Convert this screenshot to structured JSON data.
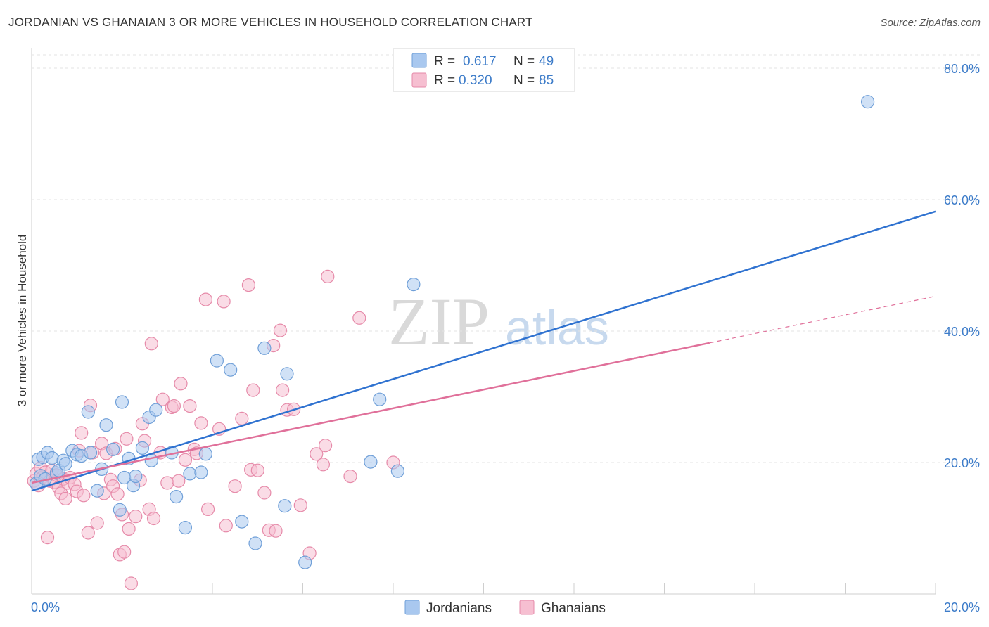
{
  "title": "JORDANIAN VS GHANAIAN 3 OR MORE VEHICLES IN HOUSEHOLD CORRELATION CHART",
  "source": "Source: ZipAtlas.com",
  "watermark": {
    "zip": "ZIP",
    "atlas": "atlas"
  },
  "colors": {
    "jordanian_fill": "#a9c8ef",
    "jordanian_stroke": "#6f9fd8",
    "jordanian_line": "#2f72d0",
    "ghanaian_fill": "#f6bfd1",
    "ghanaian_stroke": "#e68aa9",
    "ghanaian_line": "#e0709a",
    "tick_text": "#3d7cc9"
  },
  "legend": {
    "rows": [
      {
        "r_label": "R = ",
        "r_value": "0.617",
        "n_label": "N = ",
        "n_value": "49"
      },
      {
        "r_label": "R = ",
        "r_value": "0.320",
        "n_label": "N = ",
        "n_value": "85"
      }
    ],
    "bottom": [
      "Jordanians",
      "Ghanaians"
    ]
  },
  "chart_data": {
    "type": "scatter",
    "title": "JORDANIAN VS GHANAIAN 3 OR MORE VEHICLES IN HOUSEHOLD CORRELATION CHART",
    "xlabel": "",
    "ylabel": "3 or more Vehicles in Household",
    "xlim": [
      0,
      20
    ],
    "ylim": [
      0,
      80
    ],
    "x_tick_labels": [
      "0.0%",
      "20.0%"
    ],
    "y_ticks": [
      20,
      40,
      60,
      80
    ],
    "y_tick_labels": [
      "20.0%",
      "40.0%",
      "60.0%",
      "80.0%"
    ],
    "grid": true,
    "series": [
      {
        "name": "Jordanians",
        "r": 0.617,
        "n": 49,
        "trend": {
          "x": [
            0,
            20
          ],
          "y": [
            15.7,
            58.2
          ],
          "dashed_to": null
        },
        "points": [
          [
            0.1,
            16.8
          ],
          [
            0.15,
            20.5
          ],
          [
            0.2,
            18
          ],
          [
            0.25,
            20.8
          ],
          [
            0.3,
            17.5
          ],
          [
            0.35,
            21.5
          ],
          [
            0.45,
            20.7
          ],
          [
            0.55,
            18.4
          ],
          [
            0.6,
            18.8
          ],
          [
            0.7,
            20.3
          ],
          [
            0.75,
            19.8
          ],
          [
            0.9,
            21.8
          ],
          [
            1.0,
            21.2
          ],
          [
            1.1,
            21.0
          ],
          [
            1.25,
            27.7
          ],
          [
            1.3,
            21.5
          ],
          [
            1.45,
            15.7
          ],
          [
            1.55,
            19
          ],
          [
            1.65,
            25.7
          ],
          [
            1.8,
            22
          ],
          [
            1.95,
            12.8
          ],
          [
            2.0,
            29.2
          ],
          [
            2.05,
            17.7
          ],
          [
            2.15,
            20.6
          ],
          [
            2.25,
            16.5
          ],
          [
            2.3,
            17.9
          ],
          [
            2.45,
            22.2
          ],
          [
            2.6,
            26.9
          ],
          [
            2.65,
            20.3
          ],
          [
            2.75,
            28.0
          ],
          [
            3.1,
            21.5
          ],
          [
            3.2,
            14.8
          ],
          [
            3.4,
            10.1
          ],
          [
            3.5,
            18.3
          ],
          [
            3.75,
            18.5
          ],
          [
            3.85,
            21.3
          ],
          [
            4.1,
            35.5
          ],
          [
            4.4,
            34.1
          ],
          [
            4.65,
            11.0
          ],
          [
            4.95,
            7.7
          ],
          [
            5.15,
            37.4
          ],
          [
            5.6,
            13.4
          ],
          [
            5.65,
            33.5
          ],
          [
            6.05,
            4.8
          ],
          [
            7.5,
            20.1
          ],
          [
            7.7,
            29.6
          ],
          [
            8.1,
            18.7
          ],
          [
            8.45,
            47.1
          ],
          [
            18.5,
            74.9
          ]
        ]
      },
      {
        "name": "Ghanaians",
        "r": 0.32,
        "n": 85,
        "trend": {
          "x": [
            0,
            15
          ],
          "y": [
            16.9,
            38.2
          ],
          "dashed_to": [
            20,
            45.3
          ]
        },
        "points": [
          [
            0.05,
            17.2
          ],
          [
            0.1,
            18.3
          ],
          [
            0.15,
            16.5
          ],
          [
            0.2,
            19.2
          ],
          [
            0.25,
            17.8
          ],
          [
            0.3,
            18.5
          ],
          [
            0.35,
            8.6
          ],
          [
            0.4,
            17.2
          ],
          [
            0.45,
            18.8
          ],
          [
            0.5,
            17.0
          ],
          [
            0.55,
            18.1
          ],
          [
            0.6,
            16.2
          ],
          [
            0.65,
            15.3
          ],
          [
            0.7,
            17.5
          ],
          [
            0.75,
            14.5
          ],
          [
            0.8,
            16.9
          ],
          [
            0.85,
            17.7
          ],
          [
            0.95,
            16.7
          ],
          [
            1.0,
            15.6
          ],
          [
            1.05,
            21.8
          ],
          [
            1.1,
            24.5
          ],
          [
            1.15,
            15.0
          ],
          [
            1.25,
            9.3
          ],
          [
            1.3,
            28.7
          ],
          [
            1.35,
            21.5
          ],
          [
            1.45,
            10.8
          ],
          [
            1.55,
            22.9
          ],
          [
            1.6,
            15.3
          ],
          [
            1.65,
            21.4
          ],
          [
            1.75,
            17.4
          ],
          [
            1.8,
            16.4
          ],
          [
            1.85,
            22.1
          ],
          [
            1.9,
            15.2
          ],
          [
            1.95,
            6.0
          ],
          [
            2.0,
            12.1
          ],
          [
            2.05,
            6.4
          ],
          [
            2.1,
            23.6
          ],
          [
            2.15,
            9.9
          ],
          [
            2.2,
            1.6
          ],
          [
            2.3,
            11.8
          ],
          [
            2.4,
            17.3
          ],
          [
            2.45,
            25.9
          ],
          [
            2.5,
            23.3
          ],
          [
            2.6,
            12.9
          ],
          [
            2.65,
            38.1
          ],
          [
            2.7,
            11.5
          ],
          [
            2.85,
            21.5
          ],
          [
            2.9,
            29.6
          ],
          [
            3.0,
            16.9
          ],
          [
            3.1,
            28.4
          ],
          [
            3.15,
            28.6
          ],
          [
            3.25,
            17.2
          ],
          [
            3.3,
            32.0
          ],
          [
            3.4,
            20.4
          ],
          [
            3.5,
            28.6
          ],
          [
            3.6,
            22.0
          ],
          [
            3.65,
            21.4
          ],
          [
            3.75,
            26.0
          ],
          [
            3.85,
            44.8
          ],
          [
            3.9,
            12.9
          ],
          [
            4.15,
            25.1
          ],
          [
            4.25,
            44.5
          ],
          [
            4.3,
            10.4
          ],
          [
            4.5,
            16.4
          ],
          [
            4.65,
            26.7
          ],
          [
            4.8,
            47.0
          ],
          [
            4.85,
            18.9
          ],
          [
            4.9,
            31.0
          ],
          [
            5.0,
            18.8
          ],
          [
            5.15,
            15.4
          ],
          [
            5.25,
            9.7
          ],
          [
            5.35,
            37.8
          ],
          [
            5.4,
            9.6
          ],
          [
            5.5,
            40.1
          ],
          [
            5.55,
            31.0
          ],
          [
            5.65,
            28.0
          ],
          [
            5.8,
            28.1
          ],
          [
            5.95,
            13.5
          ],
          [
            6.15,
            6.2
          ],
          [
            6.3,
            21.3
          ],
          [
            6.45,
            19.7
          ],
          [
            6.5,
            22.6
          ],
          [
            6.55,
            48.3
          ],
          [
            7.05,
            17.9
          ],
          [
            7.25,
            42.0
          ],
          [
            8.0,
            20.0
          ]
        ]
      }
    ]
  },
  "axes": {
    "ylabel": "3 or more Vehicles in Household",
    "x_left": "0.0%",
    "x_right": "20.0%"
  }
}
